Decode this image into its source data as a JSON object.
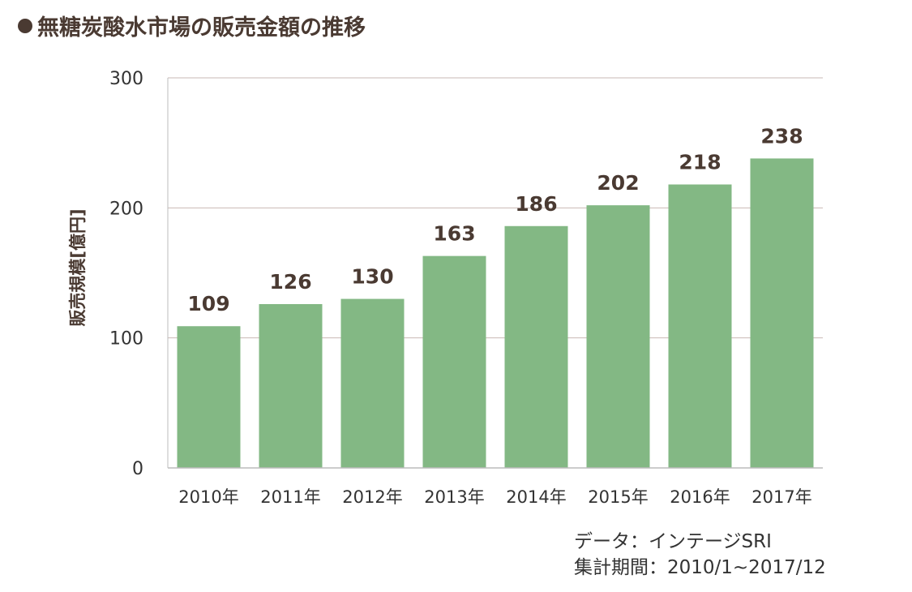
{
  "title": "無糖炭酸水市場の販売金額の推移",
  "source": {
    "line1": "データ：インテージSRI",
    "line2": "集計期間：2010/1~2017/12"
  },
  "colors": {
    "bar": "#83b884",
    "text": "#4a3a32",
    "grid": "#c9b8b4",
    "axis": "#bcbcbc"
  },
  "chart_data": {
    "type": "bar",
    "categories": [
      "2010年",
      "2011年",
      "2012年",
      "2013年",
      "2014年",
      "2015年",
      "2016年",
      "2017年"
    ],
    "values": [
      109,
      126,
      130,
      163,
      186,
      202,
      218,
      238
    ],
    "title": "無糖炭酸水市場の販売金額の推移",
    "xlabel": "",
    "ylabel": "販売規模[億円]",
    "ylim": [
      0,
      300
    ],
    "yticks": [
      0,
      100,
      200,
      300
    ],
    "grid": true,
    "data_labels": true
  }
}
